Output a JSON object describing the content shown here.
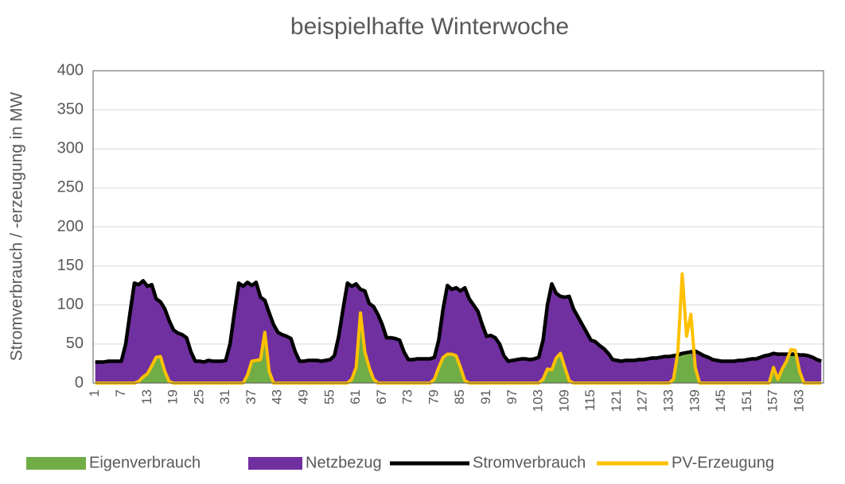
{
  "chart_data": {
    "type": "line",
    "title": "beispielhafte Winterwoche",
    "y_label": "Stromverbrauch / -erzeugung in MW",
    "categories": [
      1,
      null,
      null,
      null,
      null,
      null,
      7,
      null,
      null,
      null,
      null,
      null,
      13,
      null,
      null,
      null,
      null,
      null,
      19,
      null,
      null,
      null,
      null,
      null,
      25,
      null,
      null,
      null,
      null,
      null,
      31,
      null,
      null,
      null,
      null,
      null,
      37,
      null,
      null,
      null,
      null,
      null,
      43,
      null,
      null,
      null,
      null,
      null,
      49,
      null,
      null,
      null,
      null,
      null,
      55,
      null,
      null,
      null,
      null,
      null,
      61,
      null,
      null,
      null,
      null,
      null,
      67,
      null,
      null,
      null,
      null,
      null,
      73,
      null,
      null,
      null,
      null,
      null,
      79,
      null,
      null,
      null,
      null,
      null,
      85,
      null,
      null,
      null,
      null,
      null,
      91,
      null,
      null,
      null,
      null,
      null,
      97,
      null,
      null,
      null,
      null,
      null,
      103,
      null,
      null,
      null,
      null,
      null,
      109,
      null,
      null,
      null,
      null,
      null,
      115,
      null,
      null,
      null,
      null,
      null,
      121,
      null,
      null,
      null,
      null,
      null,
      127,
      null,
      null,
      null,
      null,
      null,
      133,
      null,
      null,
      null,
      null,
      null,
      139,
      null,
      null,
      null,
      null,
      null,
      145,
      null,
      null,
      null,
      null,
      null,
      151,
      null,
      null,
      null,
      null,
      null,
      157,
      null,
      null,
      null,
      null,
      null,
      163,
      null,
      null,
      null,
      null,
      null
    ],
    "stacked": true,
    "series": [
      {
        "name": "Eigenverbrauch",
        "color": "#70ad47",
        "kind": "area",
        "values": [
          0,
          0,
          0,
          0,
          0,
          0,
          0,
          0,
          0,
          0,
          2,
          8,
          12,
          22,
          33,
          34,
          15,
          2,
          0,
          0,
          0,
          0,
          0,
          0,
          0,
          0,
          0,
          0,
          0,
          0,
          0,
          0,
          0,
          0,
          0,
          10,
          28,
          29,
          30,
          65,
          15,
          0,
          0,
          0,
          0,
          0,
          0,
          0,
          0,
          0,
          0,
          0,
          0,
          0,
          0,
          0,
          0,
          0,
          0,
          5,
          20,
          90,
          40,
          20,
          5,
          0,
          0,
          0,
          0,
          0,
          0,
          0,
          0,
          0,
          0,
          0,
          0,
          0,
          5,
          20,
          33,
          37,
          37,
          35,
          20,
          3,
          0,
          0,
          0,
          0,
          0,
          0,
          0,
          0,
          0,
          0,
          0,
          0,
          0,
          0,
          0,
          0,
          0,
          5,
          18,
          17,
          32,
          38,
          20,
          3,
          0,
          0,
          0,
          0,
          0,
          0,
          0,
          0,
          0,
          0,
          0,
          0,
          0,
          0,
          0,
          0,
          0,
          0,
          0,
          0,
          0,
          0,
          0,
          5,
          36,
          38,
          39,
          40,
          20,
          0,
          0,
          0,
          0,
          0,
          0,
          0,
          0,
          0,
          0,
          0,
          0,
          0,
          0,
          0,
          0,
          0,
          20,
          5,
          18,
          28,
          37,
          37,
          15,
          0,
          0,
          0,
          0,
          0
        ]
      },
      {
        "name": "Netzbezug",
        "color": "#7030a0",
        "kind": "area",
        "values": [
          27,
          27,
          27,
          28,
          28,
          28,
          28,
          50,
          90,
          128,
          124,
          123,
          112,
          104,
          75,
          70,
          80,
          78,
          68,
          64,
          62,
          58,
          40,
          28,
          28,
          27,
          29,
          28,
          28,
          28,
          29,
          50,
          90,
          128,
          124,
          119,
          97,
          100,
          80,
          41,
          75,
          75,
          65,
          62,
          60,
          57,
          40,
          28,
          28,
          29,
          29,
          29,
          28,
          29,
          30,
          35,
          60,
          95,
          128,
          119,
          107,
          30,
          78,
          82,
          93,
          88,
          75,
          58,
          58,
          57,
          55,
          40,
          30,
          30,
          31,
          31,
          31,
          31,
          28,
          35,
          62,
          88,
          83,
          87,
          98,
          119,
          108,
          100,
          92,
          75,
          60,
          61,
          58,
          50,
          35,
          28,
          29,
          30,
          31,
          31,
          30,
          31,
          33,
          50,
          82,
          110,
          83,
          73,
          90,
          108,
          95,
          85,
          75,
          65,
          55,
          53,
          48,
          44,
          38,
          30,
          29,
          28,
          29,
          29,
          29,
          30,
          30,
          31,
          32,
          32,
          33,
          34,
          34,
          30,
          0,
          0,
          0,
          0,
          21,
          38,
          35,
          33,
          30,
          29,
          28,
          28,
          28,
          28,
          29,
          29,
          30,
          31,
          31,
          33,
          35,
          36,
          18,
          32,
          19,
          9,
          0,
          0,
          21,
          36,
          35,
          33,
          30,
          28
        ]
      },
      {
        "name": "Stromverbrauch",
        "color": "#000000",
        "kind": "line",
        "values": [
          27,
          27,
          27,
          28,
          28,
          28,
          28,
          50,
          90,
          128,
          126,
          131,
          124,
          126,
          108,
          104,
          95,
          80,
          68,
          64,
          62,
          58,
          40,
          28,
          28,
          27,
          29,
          28,
          28,
          28,
          29,
          50,
          90,
          128,
          124,
          129,
          125,
          129,
          110,
          106,
          90,
          75,
          65,
          62,
          60,
          57,
          40,
          28,
          28,
          29,
          29,
          29,
          28,
          29,
          30,
          35,
          60,
          95,
          128,
          124,
          127,
          120,
          118,
          102,
          98,
          88,
          75,
          58,
          58,
          57,
          55,
          40,
          30,
          30,
          31,
          31,
          31,
          31,
          33,
          55,
          95,
          125,
          120,
          122,
          118,
          122,
          108,
          100,
          92,
          75,
          60,
          61,
          58,
          50,
          35,
          28,
          29,
          30,
          31,
          31,
          30,
          31,
          33,
          55,
          100,
          127,
          115,
          111,
          110,
          111,
          95,
          85,
          75,
          65,
          55,
          53,
          48,
          44,
          38,
          30,
          29,
          28,
          29,
          29,
          29,
          30,
          30,
          31,
          32,
          32,
          33,
          34,
          34,
          35,
          36,
          38,
          39,
          40,
          41,
          38,
          35,
          33,
          30,
          29,
          28,
          28,
          28,
          28,
          29,
          29,
          30,
          31,
          31,
          33,
          35,
          36,
          38,
          37,
          37,
          37,
          37,
          37,
          36,
          36,
          35,
          33,
          30,
          28
        ]
      },
      {
        "name": "PV-Erzeugung",
        "color": "#ffc000",
        "kind": "line",
        "values": [
          0,
          0,
          0,
          0,
          0,
          0,
          0,
          0,
          0,
          0,
          2,
          8,
          12,
          22,
          33,
          34,
          15,
          2,
          0,
          0,
          0,
          0,
          0,
          0,
          0,
          0,
          0,
          0,
          0,
          0,
          0,
          0,
          0,
          0,
          0,
          10,
          28,
          29,
          30,
          65,
          15,
          0,
          0,
          0,
          0,
          0,
          0,
          0,
          0,
          0,
          0,
          0,
          0,
          0,
          0,
          0,
          0,
          0,
          0,
          5,
          20,
          90,
          40,
          20,
          5,
          0,
          0,
          0,
          0,
          0,
          0,
          0,
          0,
          0,
          0,
          0,
          0,
          0,
          5,
          20,
          33,
          37,
          37,
          35,
          20,
          3,
          0,
          0,
          0,
          0,
          0,
          0,
          0,
          0,
          0,
          0,
          0,
          0,
          0,
          0,
          0,
          0,
          0,
          5,
          18,
          17,
          32,
          38,
          20,
          3,
          0,
          0,
          0,
          0,
          0,
          0,
          0,
          0,
          0,
          0,
          0,
          0,
          0,
          0,
          0,
          0,
          0,
          0,
          0,
          0,
          0,
          0,
          0,
          5,
          40,
          140,
          60,
          88,
          20,
          0,
          0,
          0,
          0,
          0,
          0,
          0,
          0,
          0,
          0,
          0,
          0,
          0,
          0,
          0,
          0,
          0,
          20,
          5,
          18,
          28,
          43,
          42,
          15,
          0,
          0,
          0,
          0,
          0
        ]
      }
    ],
    "ylim": [
      0,
      400
    ],
    "yticks": [
      0,
      50,
      100,
      150,
      200,
      250,
      300,
      350,
      400
    ],
    "grid": true,
    "legend": "bottom"
  }
}
